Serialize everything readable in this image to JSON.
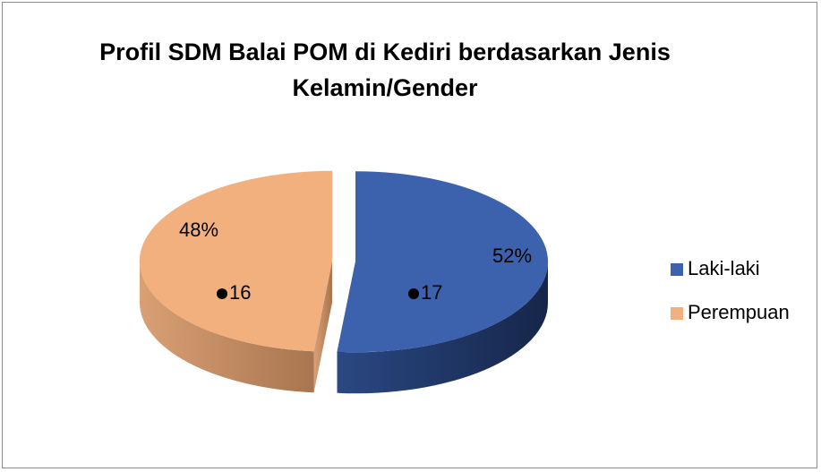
{
  "chart_data": {
    "type": "pie3d",
    "title": "Profil SDM Balai POM di Kediri berdasarkan Jenis Kelamin/Gender",
    "categories": [
      "Laki-laki",
      "Perempuan"
    ],
    "values": [
      17,
      16
    ],
    "value_labels": [
      "52%",
      "48%"
    ],
    "colors": [
      "#3c62ae",
      "#f2b07f"
    ],
    "legend": "right"
  }
}
